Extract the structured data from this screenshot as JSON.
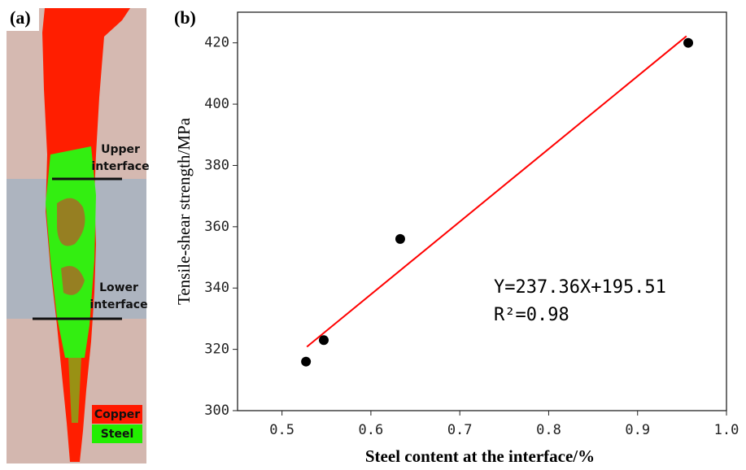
{
  "panel_a": {
    "label": "(a)",
    "upper": [
      "Upper",
      "interface"
    ],
    "lower": [
      "Lower",
      "interface"
    ],
    "legend": [
      {
        "name": "Copper",
        "color": "#ff1a00"
      },
      {
        "name": "Steel",
        "color": "#22ee00"
      }
    ]
  },
  "chart_data": {
    "type": "scatter",
    "label": "(b)",
    "xlabel": "Steel content at the interface/%",
    "ylabel": "Tensile-shear strength/MPa",
    "x": [
      0.527,
      0.547,
      0.633,
      0.957
    ],
    "values": [
      316,
      323,
      356,
      420
    ],
    "color": "#000000",
    "xlim": [
      0.45,
      1.0
    ],
    "ylim": [
      300,
      430
    ],
    "xticks": [
      0.5,
      0.6,
      0.7,
      0.8,
      0.9,
      {
        "value": 1,
        "label": "1.0"
      }
    ],
    "yticks": [
      300,
      320,
      340,
      360,
      380,
      400,
      420
    ],
    "fit": {
      "slope": 237.36,
      "intercept": 195.51,
      "xrange": [
        0.528,
        0.955
      ],
      "color": "#ff0000"
    },
    "annotations": [
      "Y=237.36X+195.51",
      "R²=0.98"
    ]
  }
}
